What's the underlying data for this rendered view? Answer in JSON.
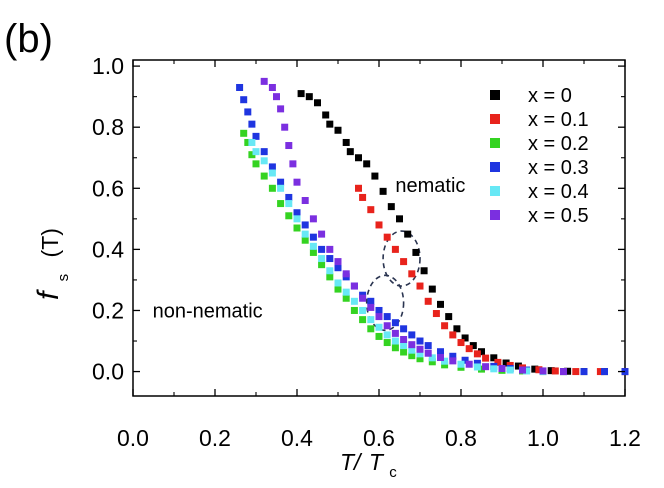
{
  "panel_label": "(b)",
  "chart_data": {
    "type": "scatter",
    "xlabel": {
      "main": "T/",
      "sub_var": "T",
      "sub": "c"
    },
    "ylabel": {
      "main": "f",
      "sub": "s",
      "unit": "(T)"
    },
    "xlim": [
      0.0,
      1.2
    ],
    "ylim": [
      -0.08,
      1.02
    ],
    "xticks": [
      0.0,
      0.2,
      0.4,
      0.6,
      0.8,
      1.0,
      1.2
    ],
    "xtick_labels": [
      "0.0",
      "0.2",
      "0.4",
      "0.6",
      "0.8",
      "1.0",
      "1.2"
    ],
    "yticks": [
      0.0,
      0.2,
      0.4,
      0.6,
      0.8,
      1.0
    ],
    "ytick_labels": [
      "0.0",
      "0.2",
      "0.4",
      "0.6",
      "0.8",
      "1.0"
    ],
    "grid": false,
    "legend_position": "top-right",
    "series": [
      {
        "name": "x = 0",
        "color": "#000000",
        "points": [
          [
            0.41,
            0.91
          ],
          [
            0.43,
            0.9
          ],
          [
            0.45,
            0.88
          ],
          [
            0.47,
            0.84
          ],
          [
            0.48,
            0.81
          ],
          [
            0.5,
            0.79
          ],
          [
            0.52,
            0.75
          ],
          [
            0.53,
            0.72
          ],
          [
            0.55,
            0.7
          ],
          [
            0.57,
            0.68
          ],
          [
            0.59,
            0.64
          ],
          [
            0.61,
            0.59
          ],
          [
            0.63,
            0.54
          ],
          [
            0.65,
            0.5
          ],
          [
            0.67,
            0.45
          ],
          [
            0.69,
            0.39
          ],
          [
            0.71,
            0.33
          ],
          [
            0.73,
            0.27
          ],
          [
            0.75,
            0.22
          ],
          [
            0.77,
            0.18
          ],
          [
            0.79,
            0.14
          ],
          [
            0.81,
            0.11
          ],
          [
            0.83,
            0.085
          ],
          [
            0.85,
            0.065
          ],
          [
            0.88,
            0.045
          ],
          [
            0.91,
            0.028
          ],
          [
            0.94,
            0.018
          ],
          [
            0.98,
            0.008
          ],
          [
            1.02,
            0.003
          ],
          [
            1.06,
            0.001
          ],
          [
            1.1,
            0.0
          ],
          [
            1.15,
            0.0
          ],
          [
            1.2,
            0.0
          ]
        ]
      },
      {
        "name": "x = 0.1",
        "color": "#e8231c",
        "points": [
          [
            0.55,
            0.6
          ],
          [
            0.56,
            0.57
          ],
          [
            0.58,
            0.53
          ],
          [
            0.6,
            0.48
          ],
          [
            0.62,
            0.44
          ],
          [
            0.64,
            0.4
          ],
          [
            0.66,
            0.36
          ],
          [
            0.68,
            0.32
          ],
          [
            0.7,
            0.28
          ],
          [
            0.72,
            0.23
          ],
          [
            0.74,
            0.19
          ],
          [
            0.76,
            0.15
          ],
          [
            0.78,
            0.12
          ],
          [
            0.8,
            0.095
          ],
          [
            0.82,
            0.075
          ],
          [
            0.84,
            0.058
          ],
          [
            0.86,
            0.044
          ],
          [
            0.89,
            0.03
          ],
          [
            0.92,
            0.02
          ],
          [
            0.95,
            0.012
          ],
          [
            0.99,
            0.006
          ],
          [
            1.03,
            0.002
          ],
          [
            1.08,
            0.0
          ],
          [
            1.14,
            0.0
          ],
          [
            1.2,
            0.0
          ]
        ]
      },
      {
        "name": "x = 0.2",
        "color": "#34d321",
        "points": [
          [
            0.27,
            0.78
          ],
          [
            0.28,
            0.75
          ],
          [
            0.29,
            0.71
          ],
          [
            0.3,
            0.68
          ],
          [
            0.32,
            0.64
          ],
          [
            0.34,
            0.6
          ],
          [
            0.36,
            0.55
          ],
          [
            0.38,
            0.51
          ],
          [
            0.4,
            0.47
          ],
          [
            0.42,
            0.43
          ],
          [
            0.44,
            0.39
          ],
          [
            0.46,
            0.35
          ],
          [
            0.48,
            0.31
          ],
          [
            0.5,
            0.27
          ],
          [
            0.52,
            0.24
          ],
          [
            0.54,
            0.2
          ],
          [
            0.56,
            0.17
          ],
          [
            0.58,
            0.14
          ],
          [
            0.6,
            0.115
          ],
          [
            0.62,
            0.095
          ],
          [
            0.64,
            0.078
          ],
          [
            0.66,
            0.064
          ],
          [
            0.68,
            0.052
          ],
          [
            0.7,
            0.042
          ],
          [
            0.73,
            0.032
          ],
          [
            0.76,
            0.022
          ],
          [
            0.8,
            0.014
          ],
          [
            0.85,
            0.008
          ],
          [
            0.9,
            0.004
          ],
          [
            0.95,
            0.002
          ],
          [
            1.0,
            0.0
          ],
          [
            1.05,
            0.0
          ]
        ]
      },
      {
        "name": "x = 0.3",
        "color": "#1f35e0",
        "points": [
          [
            0.26,
            0.93
          ],
          [
            0.27,
            0.89
          ],
          [
            0.28,
            0.85
          ],
          [
            0.29,
            0.81
          ],
          [
            0.3,
            0.77
          ],
          [
            0.32,
            0.72
          ],
          [
            0.34,
            0.67
          ],
          [
            0.36,
            0.62
          ],
          [
            0.38,
            0.57
          ],
          [
            0.4,
            0.52
          ],
          [
            0.42,
            0.48
          ],
          [
            0.44,
            0.44
          ],
          [
            0.46,
            0.4
          ],
          [
            0.48,
            0.37
          ],
          [
            0.5,
            0.34
          ],
          [
            0.52,
            0.31
          ],
          [
            0.54,
            0.28
          ],
          [
            0.56,
            0.25
          ],
          [
            0.58,
            0.23
          ],
          [
            0.6,
            0.2
          ],
          [
            0.62,
            0.18
          ],
          [
            0.64,
            0.16
          ],
          [
            0.66,
            0.14
          ],
          [
            0.68,
            0.12
          ],
          [
            0.7,
            0.1
          ],
          [
            0.72,
            0.085
          ],
          [
            0.75,
            0.065
          ],
          [
            0.78,
            0.05
          ],
          [
            0.81,
            0.037
          ],
          [
            0.84,
            0.027
          ],
          [
            0.88,
            0.017
          ],
          [
            0.92,
            0.01
          ],
          [
            0.96,
            0.005
          ],
          [
            1.0,
            0.002
          ],
          [
            1.05,
            0.0
          ],
          [
            1.1,
            0.0
          ],
          [
            1.15,
            0.0
          ],
          [
            1.2,
            0.0
          ]
        ]
      },
      {
        "name": "x = 0.4",
        "color": "#67e8f5",
        "points": [
          [
            0.29,
            0.75
          ],
          [
            0.3,
            0.72
          ],
          [
            0.32,
            0.69
          ],
          [
            0.34,
            0.65
          ],
          [
            0.36,
            0.6
          ],
          [
            0.38,
            0.55
          ],
          [
            0.4,
            0.5
          ],
          [
            0.42,
            0.45
          ],
          [
            0.44,
            0.41
          ],
          [
            0.46,
            0.37
          ],
          [
            0.48,
            0.33
          ],
          [
            0.5,
            0.29
          ],
          [
            0.52,
            0.26
          ],
          [
            0.54,
            0.23
          ],
          [
            0.56,
            0.2
          ],
          [
            0.58,
            0.17
          ],
          [
            0.6,
            0.145
          ],
          [
            0.62,
            0.12
          ],
          [
            0.64,
            0.1
          ],
          [
            0.66,
            0.085
          ],
          [
            0.68,
            0.07
          ],
          [
            0.7,
            0.058
          ],
          [
            0.73,
            0.045
          ],
          [
            0.76,
            0.034
          ],
          [
            0.8,
            0.024
          ],
          [
            0.84,
            0.015
          ],
          [
            0.88,
            0.009
          ],
          [
            0.92,
            0.005
          ],
          [
            0.96,
            0.002
          ],
          [
            1.0,
            0.0
          ]
        ]
      },
      {
        "name": "x = 0.5",
        "color": "#7b2fe0",
        "points": [
          [
            0.32,
            0.95
          ],
          [
            0.34,
            0.93
          ],
          [
            0.35,
            0.9
          ],
          [
            0.36,
            0.86
          ],
          [
            0.37,
            0.8
          ],
          [
            0.38,
            0.74
          ],
          [
            0.39,
            0.68
          ],
          [
            0.4,
            0.62
          ],
          [
            0.42,
            0.56
          ],
          [
            0.44,
            0.5
          ],
          [
            0.46,
            0.45
          ],
          [
            0.48,
            0.4
          ],
          [
            0.5,
            0.36
          ],
          [
            0.52,
            0.32
          ],
          [
            0.54,
            0.28
          ],
          [
            0.56,
            0.24
          ],
          [
            0.58,
            0.21
          ],
          [
            0.6,
            0.18
          ],
          [
            0.62,
            0.15
          ],
          [
            0.64,
            0.125
          ],
          [
            0.66,
            0.105
          ],
          [
            0.68,
            0.088
          ],
          [
            0.7,
            0.073
          ],
          [
            0.72,
            0.06
          ],
          [
            0.75,
            0.046
          ],
          [
            0.78,
            0.035
          ],
          [
            0.82,
            0.024
          ],
          [
            0.86,
            0.016
          ],
          [
            0.9,
            0.01
          ],
          [
            0.95,
            0.005
          ],
          [
            1.0,
            0.002
          ],
          [
            1.05,
            0.0
          ]
        ]
      }
    ],
    "annotations": [
      {
        "text": "nematic",
        "at": [
          0.64,
          0.61
        ]
      },
      {
        "text": "non-nematic",
        "at": [
          0.36,
          0.2
        ]
      }
    ],
    "circles": [
      {
        "center": [
          0.655,
          0.37
        ],
        "rx_data": 0.045,
        "ry_data": 0.09
      },
      {
        "center": [
          0.615,
          0.225
        ],
        "rx_data": 0.045,
        "ry_data": 0.09
      }
    ]
  }
}
